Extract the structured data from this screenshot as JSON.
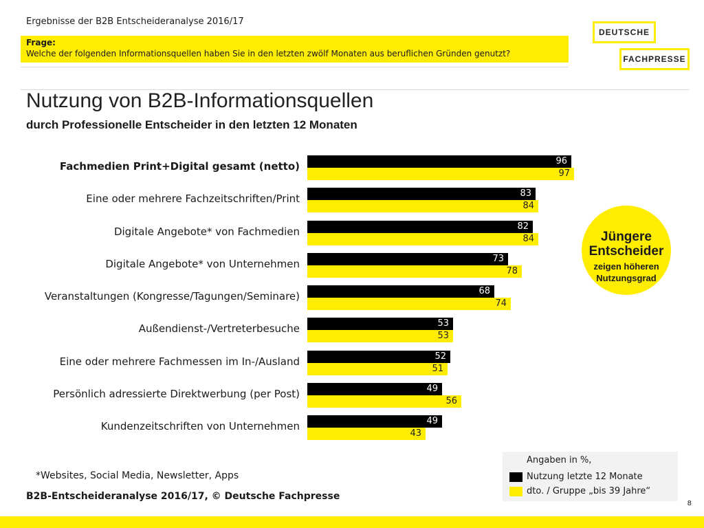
{
  "header": {
    "top_text": "Ergebnisse der B2B Entscheideranalyse 2016/17",
    "frage_label": "Frage:",
    "frage_text": "Welche der folgenden Informationsquellen haben Sie in den letzten zwölf Monaten aus beruflichen Gründen genutzt?"
  },
  "logo": {
    "line1": "DEUTSCHE",
    "line2": "FACHPRESSE"
  },
  "chart_data": {
    "type": "bar",
    "orientation": "horizontal",
    "title": "Nutzung von B2B-Informationsquellen",
    "subtitle": "durch Professionelle Entscheider in den letzten 12 Monaten",
    "categories": [
      "Fachmedien Print+Digital gesamt (netto)",
      "Eine oder mehrere Fachzeitschriften/Print",
      "Digitale Angebote* von Fachmedien",
      "Digitale Angebote* von Unternehmen",
      "Veranstaltungen (Kongresse/Tagungen/Seminare)",
      "Außendienst-/Vertreterbesuche",
      "Eine oder mehrere Fachmessen im In-/Ausland",
      "Persönlich adressierte Direktwerbung (per Post)",
      "Kundenzeitschriften von Unternehmen"
    ],
    "series": [
      {
        "name": "Nutzung letzte 12 Monate",
        "color": "#000000",
        "values": [
          96,
          83,
          82,
          73,
          68,
          53,
          52,
          49,
          49
        ]
      },
      {
        "name": "dto. / Gruppe „bis 39 Jahre“",
        "color": "#ffed00",
        "values": [
          97,
          84,
          84,
          78,
          74,
          53,
          51,
          56,
          43
        ]
      }
    ],
    "xlim": [
      0,
      100
    ],
    "unit": "%"
  },
  "callout": {
    "headline": "Jüngere Entscheider",
    "text": "zeigen höheren Nutzungsgrad"
  },
  "legend": {
    "header": "Angaben in %,",
    "items": [
      "Nutzung letzte 12 Monate",
      "dto. / Gruppe „bis 39 Jahre“"
    ]
  },
  "footnote": "*Websites, Social Media, Newsletter, Apps",
  "source": "B2B-Entscheideranalyse 2016/17, © Deutsche Fachpresse",
  "page_number": "8"
}
